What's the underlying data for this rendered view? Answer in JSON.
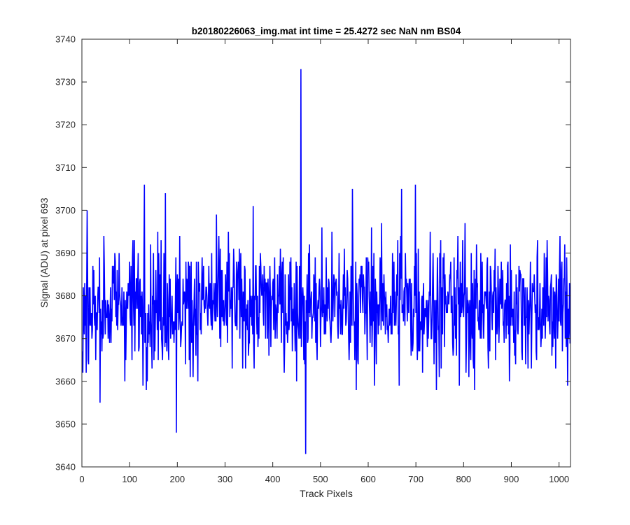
{
  "chart_data": {
    "type": "line",
    "title": "b20180226063_img.mat int time = 25.4272 sec  NaN nm BS04",
    "xlabel": "Track Pixels",
    "ylabel": "Signal (ADU) at pixel 693",
    "xlim": [
      0,
      1024
    ],
    "ylim": [
      3640,
      3740
    ],
    "xticks": [
      0,
      100,
      200,
      300,
      400,
      500,
      600,
      700,
      800,
      900,
      1000
    ],
    "yticks": [
      3640,
      3650,
      3660,
      3670,
      3680,
      3690,
      3700,
      3710,
      3720,
      3730,
      3740
    ],
    "grid": false,
    "legend": "none",
    "series": [
      {
        "color": "#0000ff",
        "x_start": 1,
        "x_step": 1,
        "note_points": "approximate per-pixel trace (noise around ~3678 ADU)",
        "values": []
      }
    ]
  }
}
